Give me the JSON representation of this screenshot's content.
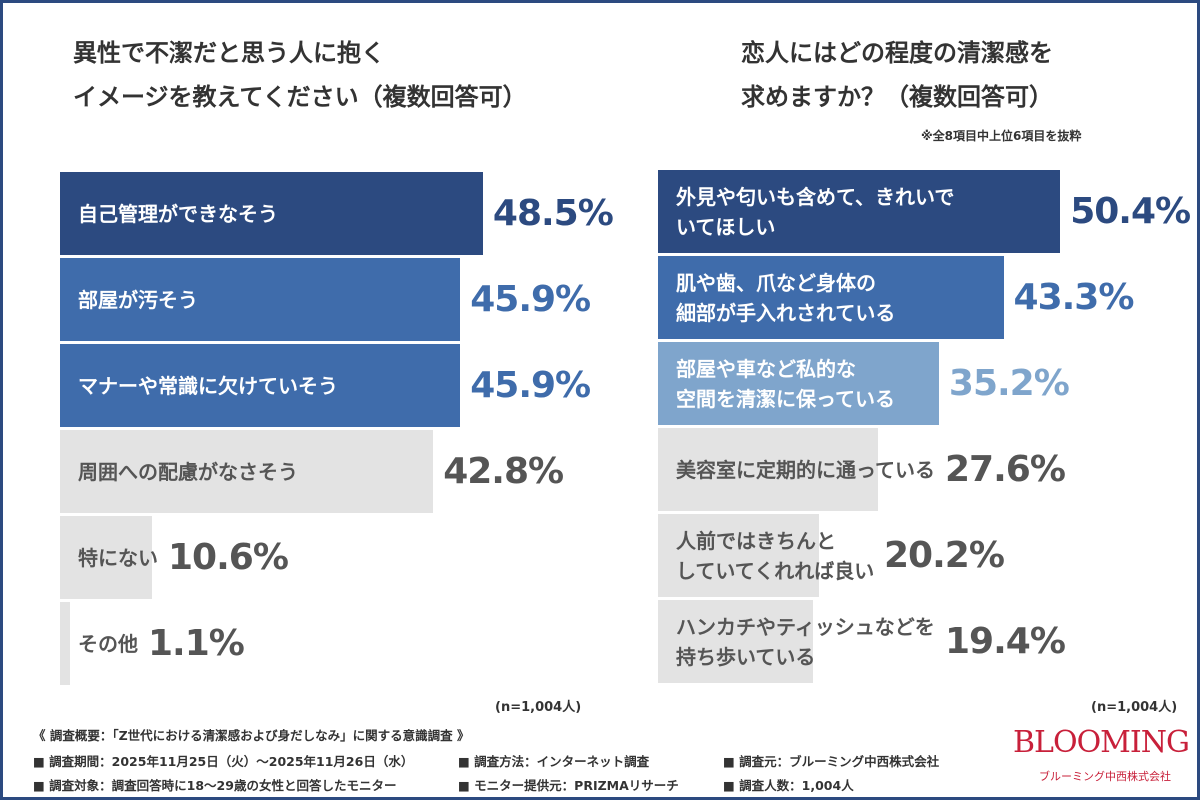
{
  "chart_data": [
    {
      "type": "bar",
      "orientation": "horizontal",
      "title": "異性で不潔だと思う人に抱く\nイメージを教えてください（複数回答可）",
      "categories": [
        "自己管理ができなそう",
        "部屋が汚そう",
        "マナーや常識に欠けていそう",
        "周囲への配慮がなさそう",
        "特にない",
        "その他"
      ],
      "values": [
        48.5,
        45.9,
        45.9,
        42.8,
        10.6,
        1.1
      ],
      "value_labels": [
        "48.5%",
        "45.9%",
        "45.9%",
        "42.8%",
        "10.6%",
        "1.1%"
      ],
      "colors": [
        "#2c4a80",
        "#3f6cab",
        "#3f6cab",
        "#e3e3e3",
        "#e3e3e3",
        "#e3e3e3"
      ],
      "note": "(n=1,004人)"
    },
    {
      "type": "bar",
      "orientation": "horizontal",
      "title": "恋人にはどの程度の清潔感を\n求めますか？（複数回答可）",
      "subtitle": "※全8項目中上位6項目を抜粋",
      "categories": [
        "外見や匂いも含めて、きれいで\nいてほしい",
        "肌や歯、爪など身体の\n細部が手入れされている",
        "部屋や車など私的な\n空間を清潔に保っている",
        "美容室に定期的に通っている",
        "人前ではきちんと\nしていてくれれば良い",
        "ハンカチやティッシュなどを\n持ち歩いている"
      ],
      "values": [
        50.4,
        43.3,
        35.2,
        27.6,
        20.2,
        19.4
      ],
      "value_labels": [
        "50.4%",
        "43.3%",
        "35.2%",
        "27.6%",
        "20.2%",
        "19.4%"
      ],
      "colors": [
        "#2c4a80",
        "#3f6cab",
        "#7fa5cc",
        "#e3e3e3",
        "#e3e3e3",
        "#e3e3e3"
      ],
      "note": "(n=1,004人)"
    }
  ],
  "footer": {
    "heading": "《 調査概要：「Z世代における清潔感および身だしなみ」に関する意識調査 》",
    "items": [
      "■ 調査期間：2025年11月25日（火）～2025年11月26日（水）",
      "■ 調査方法：インターネット調査",
      "■ 調査元：ブルーミング中西株式会社",
      "■ 調査対象：調査回答時に18～29歳の女性と回答したモニター",
      "■ モニター提供元：PRIZMAリサーチ",
      "■ 調査人数：1,004人"
    ]
  },
  "logo": {
    "name": "BLOOMING",
    "company": "ブルーミング中西株式会社"
  }
}
